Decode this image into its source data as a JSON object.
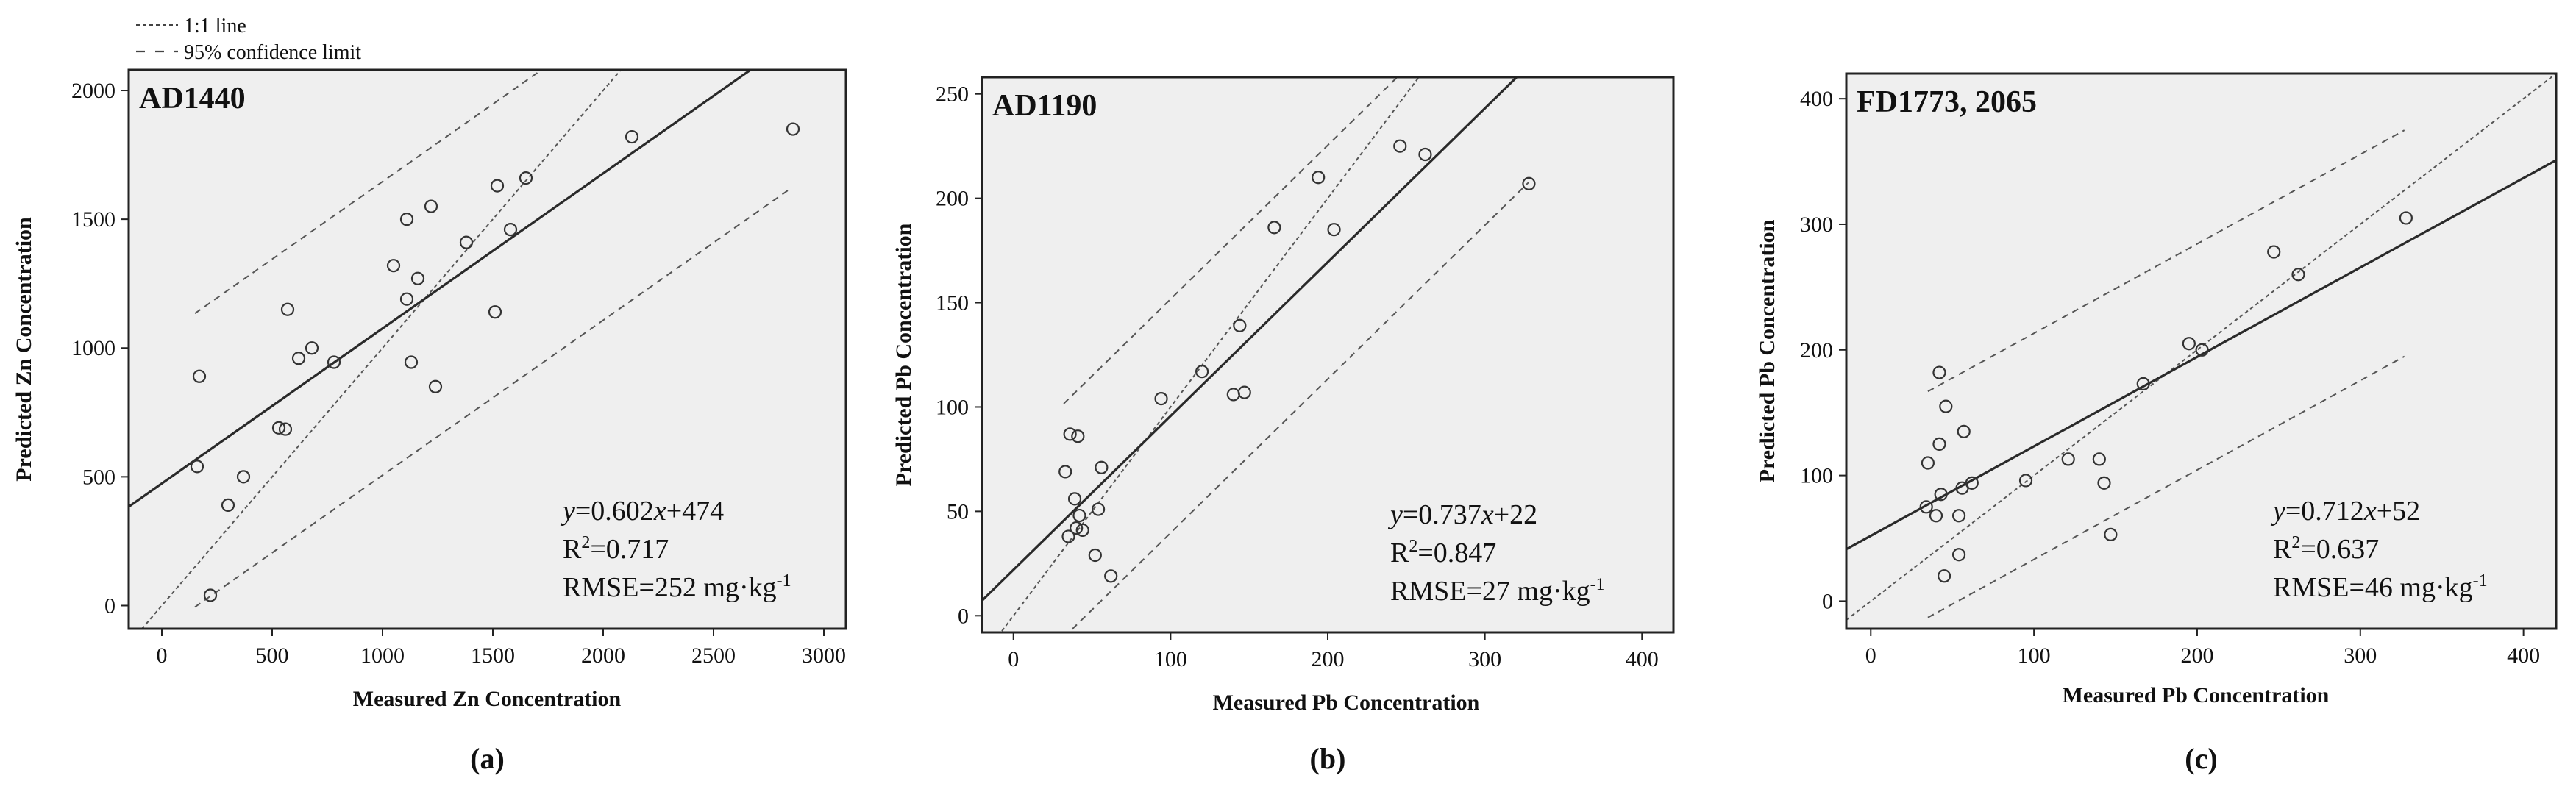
{
  "legend": {
    "line_1to1": "1:1 line",
    "conf_limit": "95% confidence limit"
  },
  "colors": {
    "plot_bg": "#efefef",
    "frame": "#222222",
    "regression_line": "#2a2a2a",
    "reference_line": "#555555",
    "marker": "#333333"
  },
  "chart_data": [
    {
      "type": "scatter",
      "panel_label": "(a)",
      "title": "AD1440",
      "xlabel": "Measured Zn Concentration",
      "ylabel": "Predicted Zn Concentration",
      "xlim": [
        -150,
        3100
      ],
      "ylim": [
        -90,
        2080
      ],
      "xticks": [
        0,
        500,
        1000,
        1500,
        2000,
        2500,
        3000
      ],
      "yticks": [
        0,
        500,
        1000,
        1500,
        2000
      ],
      "equation": {
        "y": "y",
        "eq": "=0.602",
        "x": "x",
        "rest": "+474"
      },
      "r2": {
        "prefix": "R",
        "sup": "2",
        "value": "=0.717"
      },
      "rmse": {
        "prefix": "RMSE=252 mg·kg",
        "sup": "-1"
      },
      "regression": {
        "slope": 0.602,
        "intercept": 474
      },
      "conf_offset": 570,
      "conf_xrange": [
        150,
        2850
      ],
      "points": [
        {
          "x": 160,
          "y": 540
        },
        {
          "x": 170,
          "y": 890
        },
        {
          "x": 220,
          "y": 40
        },
        {
          "x": 300,
          "y": 390
        },
        {
          "x": 370,
          "y": 500
        },
        {
          "x": 530,
          "y": 690
        },
        {
          "x": 560,
          "y": 685
        },
        {
          "x": 570,
          "y": 1150
        },
        {
          "x": 620,
          "y": 960
        },
        {
          "x": 680,
          "y": 1000
        },
        {
          "x": 780,
          "y": 945
        },
        {
          "x": 1050,
          "y": 1320
        },
        {
          "x": 1110,
          "y": 1500
        },
        {
          "x": 1110,
          "y": 1190
        },
        {
          "x": 1130,
          "y": 945
        },
        {
          "x": 1160,
          "y": 1270
        },
        {
          "x": 1220,
          "y": 1550
        },
        {
          "x": 1240,
          "y": 850
        },
        {
          "x": 1380,
          "y": 1410
        },
        {
          "x": 1510,
          "y": 1140
        },
        {
          "x": 1520,
          "y": 1630
        },
        {
          "x": 1580,
          "y": 1460
        },
        {
          "x": 1650,
          "y": 1660
        },
        {
          "x": 2130,
          "y": 1820
        },
        {
          "x": 2860,
          "y": 1850
        }
      ]
    },
    {
      "type": "scatter",
      "panel_label": "(b)",
      "title": "AD1190",
      "xlabel": "Measured Pb Concentration",
      "ylabel": "Predicted Pb Concentration",
      "xlim": [
        -20,
        420
      ],
      "ylim": [
        -8,
        258
      ],
      "xticks": [
        0,
        100,
        200,
        300,
        400
      ],
      "yticks": [
        0,
        50,
        100,
        150,
        200,
        250
      ],
      "equation": {
        "y": "y",
        "eq": "=0.737",
        "x": "x",
        "rest": "+22"
      },
      "r2": {
        "prefix": "R",
        "sup": "2",
        "value": "=0.847"
      },
      "rmse": {
        "prefix": "RMSE=27 mg·kg",
        "sup": "-1"
      },
      "regression": {
        "slope": 0.737,
        "intercept": 22
      },
      "conf_offset": 56,
      "conf_xrange": [
        32,
        328
      ],
      "points": [
        {
          "x": 33,
          "y": 69
        },
        {
          "x": 35,
          "y": 38
        },
        {
          "x": 36,
          "y": 87
        },
        {
          "x": 39,
          "y": 56
        },
        {
          "x": 40,
          "y": 42
        },
        {
          "x": 41,
          "y": 86
        },
        {
          "x": 42,
          "y": 48
        },
        {
          "x": 44,
          "y": 41
        },
        {
          "x": 52,
          "y": 29
        },
        {
          "x": 54,
          "y": 51
        },
        {
          "x": 56,
          "y": 71
        },
        {
          "x": 62,
          "y": 19
        },
        {
          "x": 94,
          "y": 104
        },
        {
          "x": 120,
          "y": 117
        },
        {
          "x": 140,
          "y": 106
        },
        {
          "x": 144,
          "y": 139
        },
        {
          "x": 147,
          "y": 107
        },
        {
          "x": 166,
          "y": 186
        },
        {
          "x": 194,
          "y": 210
        },
        {
          "x": 204,
          "y": 185
        },
        {
          "x": 246,
          "y": 225
        },
        {
          "x": 262,
          "y": 221
        },
        {
          "x": 328,
          "y": 207
        }
      ]
    },
    {
      "type": "scatter",
      "panel_label": "(c)",
      "title": "FD1773, 2065",
      "xlabel": "Measured Pb Concentration",
      "ylabel": "Predicted Pb Concentration",
      "xlim": [
        -15,
        420
      ],
      "ylim": [
        -22,
        420
      ],
      "xticks": [
        0,
        100,
        200,
        300,
        400
      ],
      "yticks": [
        0,
        100,
        200,
        300,
        400
      ],
      "equation": {
        "y": "y",
        "eq": "=0.712",
        "x": "x",
        "rest": "+52"
      },
      "r2": {
        "prefix": "R",
        "sup": "2",
        "value": "=0.637"
      },
      "rmse": {
        "prefix": "RMSE=46 mg·kg",
        "sup": "-1"
      },
      "regression": {
        "slope": 0.712,
        "intercept": 52
      },
      "conf_offset": 90,
      "conf_xrange": [
        35,
        327
      ],
      "points": [
        {
          "x": 34,
          "y": 75
        },
        {
          "x": 35,
          "y": 110
        },
        {
          "x": 40,
          "y": 68
        },
        {
          "x": 42,
          "y": 182
        },
        {
          "x": 42,
          "y": 125
        },
        {
          "x": 43,
          "y": 85
        },
        {
          "x": 45,
          "y": 20
        },
        {
          "x": 46,
          "y": 155
        },
        {
          "x": 54,
          "y": 37
        },
        {
          "x": 54,
          "y": 68
        },
        {
          "x": 56,
          "y": 90
        },
        {
          "x": 57,
          "y": 135
        },
        {
          "x": 62,
          "y": 94
        },
        {
          "x": 95,
          "y": 96
        },
        {
          "x": 121,
          "y": 113
        },
        {
          "x": 140,
          "y": 113
        },
        {
          "x": 143,
          "y": 94
        },
        {
          "x": 147,
          "y": 53
        },
        {
          "x": 167,
          "y": 173
        },
        {
          "x": 195,
          "y": 205
        },
        {
          "x": 203,
          "y": 200
        },
        {
          "x": 247,
          "y": 278
        },
        {
          "x": 262,
          "y": 260
        },
        {
          "x": 328,
          "y": 305
        }
      ]
    }
  ]
}
